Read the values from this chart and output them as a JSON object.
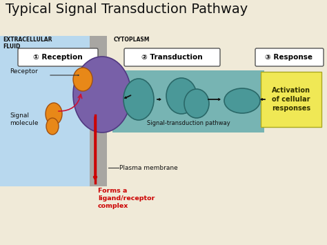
{
  "title": "Typical Signal Transduction Pathway",
  "title_fontsize": 13,
  "title_color": "#000000",
  "bg_color": "#f0ead8",
  "extracellular_color": "#b8d8ee",
  "membrane_color": "#909090",
  "transduction_box_color": "#6aafaf",
  "response_box_color": "#f0e855",
  "step_box_color": "#ffffff",
  "step_box_edge": "#555555",
  "label_extracellular": "EXTRACELLULAR\nFLUID",
  "label_cytoplasm": "CYTOPLASM",
  "label_receptor": "Receptor",
  "label_signal": "Signal\nmolecule",
  "label_plasma": "Plasma membrane",
  "label_forms": "Forms a\nligand/receptor\ncomplex",
  "label_signal_pathway": "Signal-transduction pathway",
  "label_activation": "Activation\nof cellular\nresponses",
  "step1_label": "① Reception",
  "step2_label": "② Transduction",
  "step3_label": "③ Response",
  "receptor_color": "#7860a8",
  "signal_molecule_color": "#e88818",
  "teal_shape_color": "#4a9898",
  "arrow_color": "#111111",
  "red_arrow_color": "#cc0000",
  "pink_arrow_color": "#cc1133",
  "forms_text_color": "#cc0000"
}
